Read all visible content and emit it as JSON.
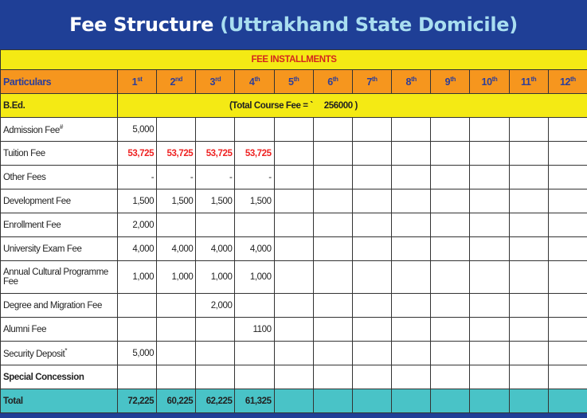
{
  "title": {
    "main": "Fee Structure",
    "sub": "(Uttrakhand State Domicile)"
  },
  "table": {
    "section_header": "FEE INSTALLMENTS",
    "particulars_label": "Particulars",
    "installments": [
      {
        "n": "1",
        "s": "st"
      },
      {
        "n": "2",
        "s": "nd"
      },
      {
        "n": "3",
        "s": "rd"
      },
      {
        "n": "4",
        "s": "th"
      },
      {
        "n": "5",
        "s": "th"
      },
      {
        "n": "6",
        "s": "th"
      },
      {
        "n": "7",
        "s": "th"
      },
      {
        "n": "8",
        "s": "th"
      },
      {
        "n": "9",
        "s": "th"
      },
      {
        "n": "10",
        "s": "th"
      },
      {
        "n": "11",
        "s": "th"
      },
      {
        "n": "12",
        "s": "th"
      }
    ],
    "course": {
      "name": "B.Ed.",
      "total_fee_text": "(Total Course Fee = `     256000 )"
    },
    "rows": [
      {
        "label": "Admission Fee",
        "mark": "#",
        "values": [
          "5,000",
          "",
          "",
          ""
        ]
      },
      {
        "label": "Tuition  Fee",
        "mark": "",
        "values": [
          "53,725",
          "53,725",
          "53,725",
          "53,725"
        ],
        "highlight": "#e22222"
      },
      {
        "label": "Other Fees",
        "mark": "",
        "values": [
          "-",
          "-",
          "-",
          "-"
        ]
      },
      {
        "label": "Development Fee",
        "mark": "",
        "values": [
          "1,500",
          "1,500",
          "1,500",
          "1,500"
        ]
      },
      {
        "label": "Enrollment Fee",
        "mark": "",
        "values": [
          "2,000",
          "",
          "",
          ""
        ]
      },
      {
        "label": "University Exam Fee",
        "mark": "",
        "values": [
          "4,000",
          "4,000",
          "4,000",
          "4,000"
        ]
      },
      {
        "label": "Annual Cultural Programme Fee",
        "mark": "",
        "values": [
          "1,000",
          "1,000",
          "1,000",
          "1,000"
        ]
      },
      {
        "label": "Degree and Migration Fee",
        "mark": "",
        "values": [
          "",
          "",
          "2,000",
          ""
        ]
      },
      {
        "label": "Alumni Fee",
        "mark": "",
        "values": [
          "",
          "",
          "",
          "1100"
        ]
      },
      {
        "label": "Security Deposit",
        "mark": "*",
        "values": [
          "5,000",
          "",
          "",
          ""
        ]
      },
      {
        "label": "Special Concession",
        "mark": "",
        "values": [
          "",
          "",
          "",
          ""
        ]
      }
    ],
    "total": {
      "label": "Total",
      "values": [
        "72,225",
        "60,225",
        "62,225",
        "61,325"
      ]
    }
  },
  "colors": {
    "background": "#1f3f96",
    "yellow": "#f4ea14",
    "orange": "#f6961e",
    "teal": "#49c3c7",
    "red": "#e22222"
  }
}
